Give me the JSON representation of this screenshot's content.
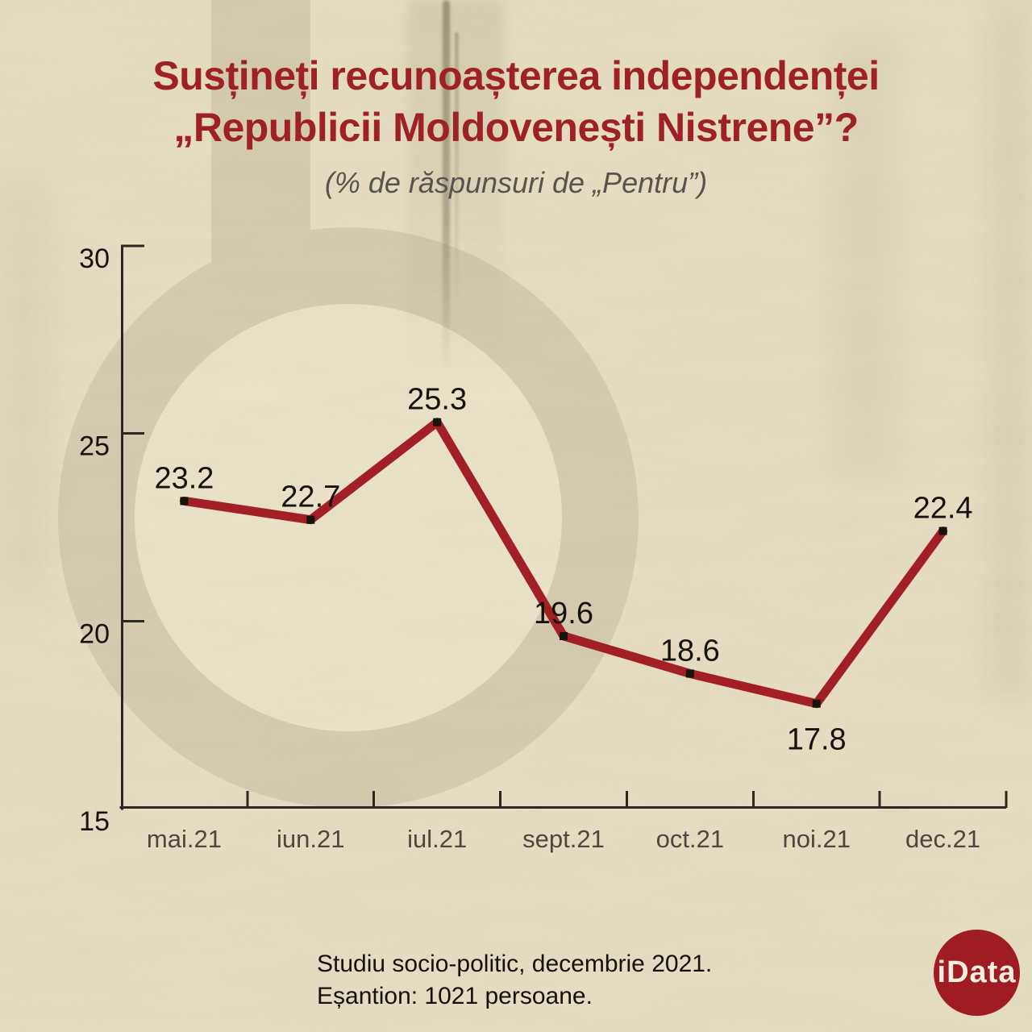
{
  "page": {
    "title_line1": "Susțineți recunoașterea independenței",
    "title_line2": "„Republicii Moldovenești Nistrene”?",
    "subtitle": "(% de răspunsuri de „Pentru”)",
    "footer_line1": "Studiu socio-politic, decembrie 2021.",
    "footer_line2": "Eșantion: 1021 persoane.",
    "logo_text": "iData"
  },
  "colors": {
    "background": "#e8dfc5",
    "watermark_dark": "#d6ccb2",
    "watermark_light": "#ece5cb",
    "title_red": "#9e2126",
    "line_red": "#a21f26",
    "marker_black": "#17140e",
    "axis_color": "#2b2721",
    "value_label_color": "#16130c",
    "ytick_label_color": "#16130d",
    "xtick_label_color": "#4c4840",
    "logo_red": "#9e1c22"
  },
  "chart_data": {
    "type": "line",
    "title": "Susțineți recunoașterea independenței „Republicii Moldovenești Nistrene”?",
    "subtitle": "(% de răspunsuri de „Pentru”)",
    "source_note": "Studiu socio-politic, decembrie 2021. Eșantion: 1021 persoane.",
    "categories": [
      "mai.21",
      "iun.21",
      "iul.21",
      "sept.21",
      "oct.21",
      "noi.21",
      "dec.21"
    ],
    "values": [
      23.2,
      22.7,
      25.3,
      19.6,
      18.6,
      17.8,
      22.4
    ],
    "data_labels": [
      "23.2",
      "22.7",
      "25.3",
      "19.6",
      "18.6",
      "17.8",
      "22.4"
    ],
    "xlabel": "",
    "ylabel": "",
    "ylim": [
      15,
      30
    ],
    "yticks": [
      15,
      20,
      25,
      30
    ],
    "grid": false,
    "legend": "none",
    "marker": "square"
  }
}
